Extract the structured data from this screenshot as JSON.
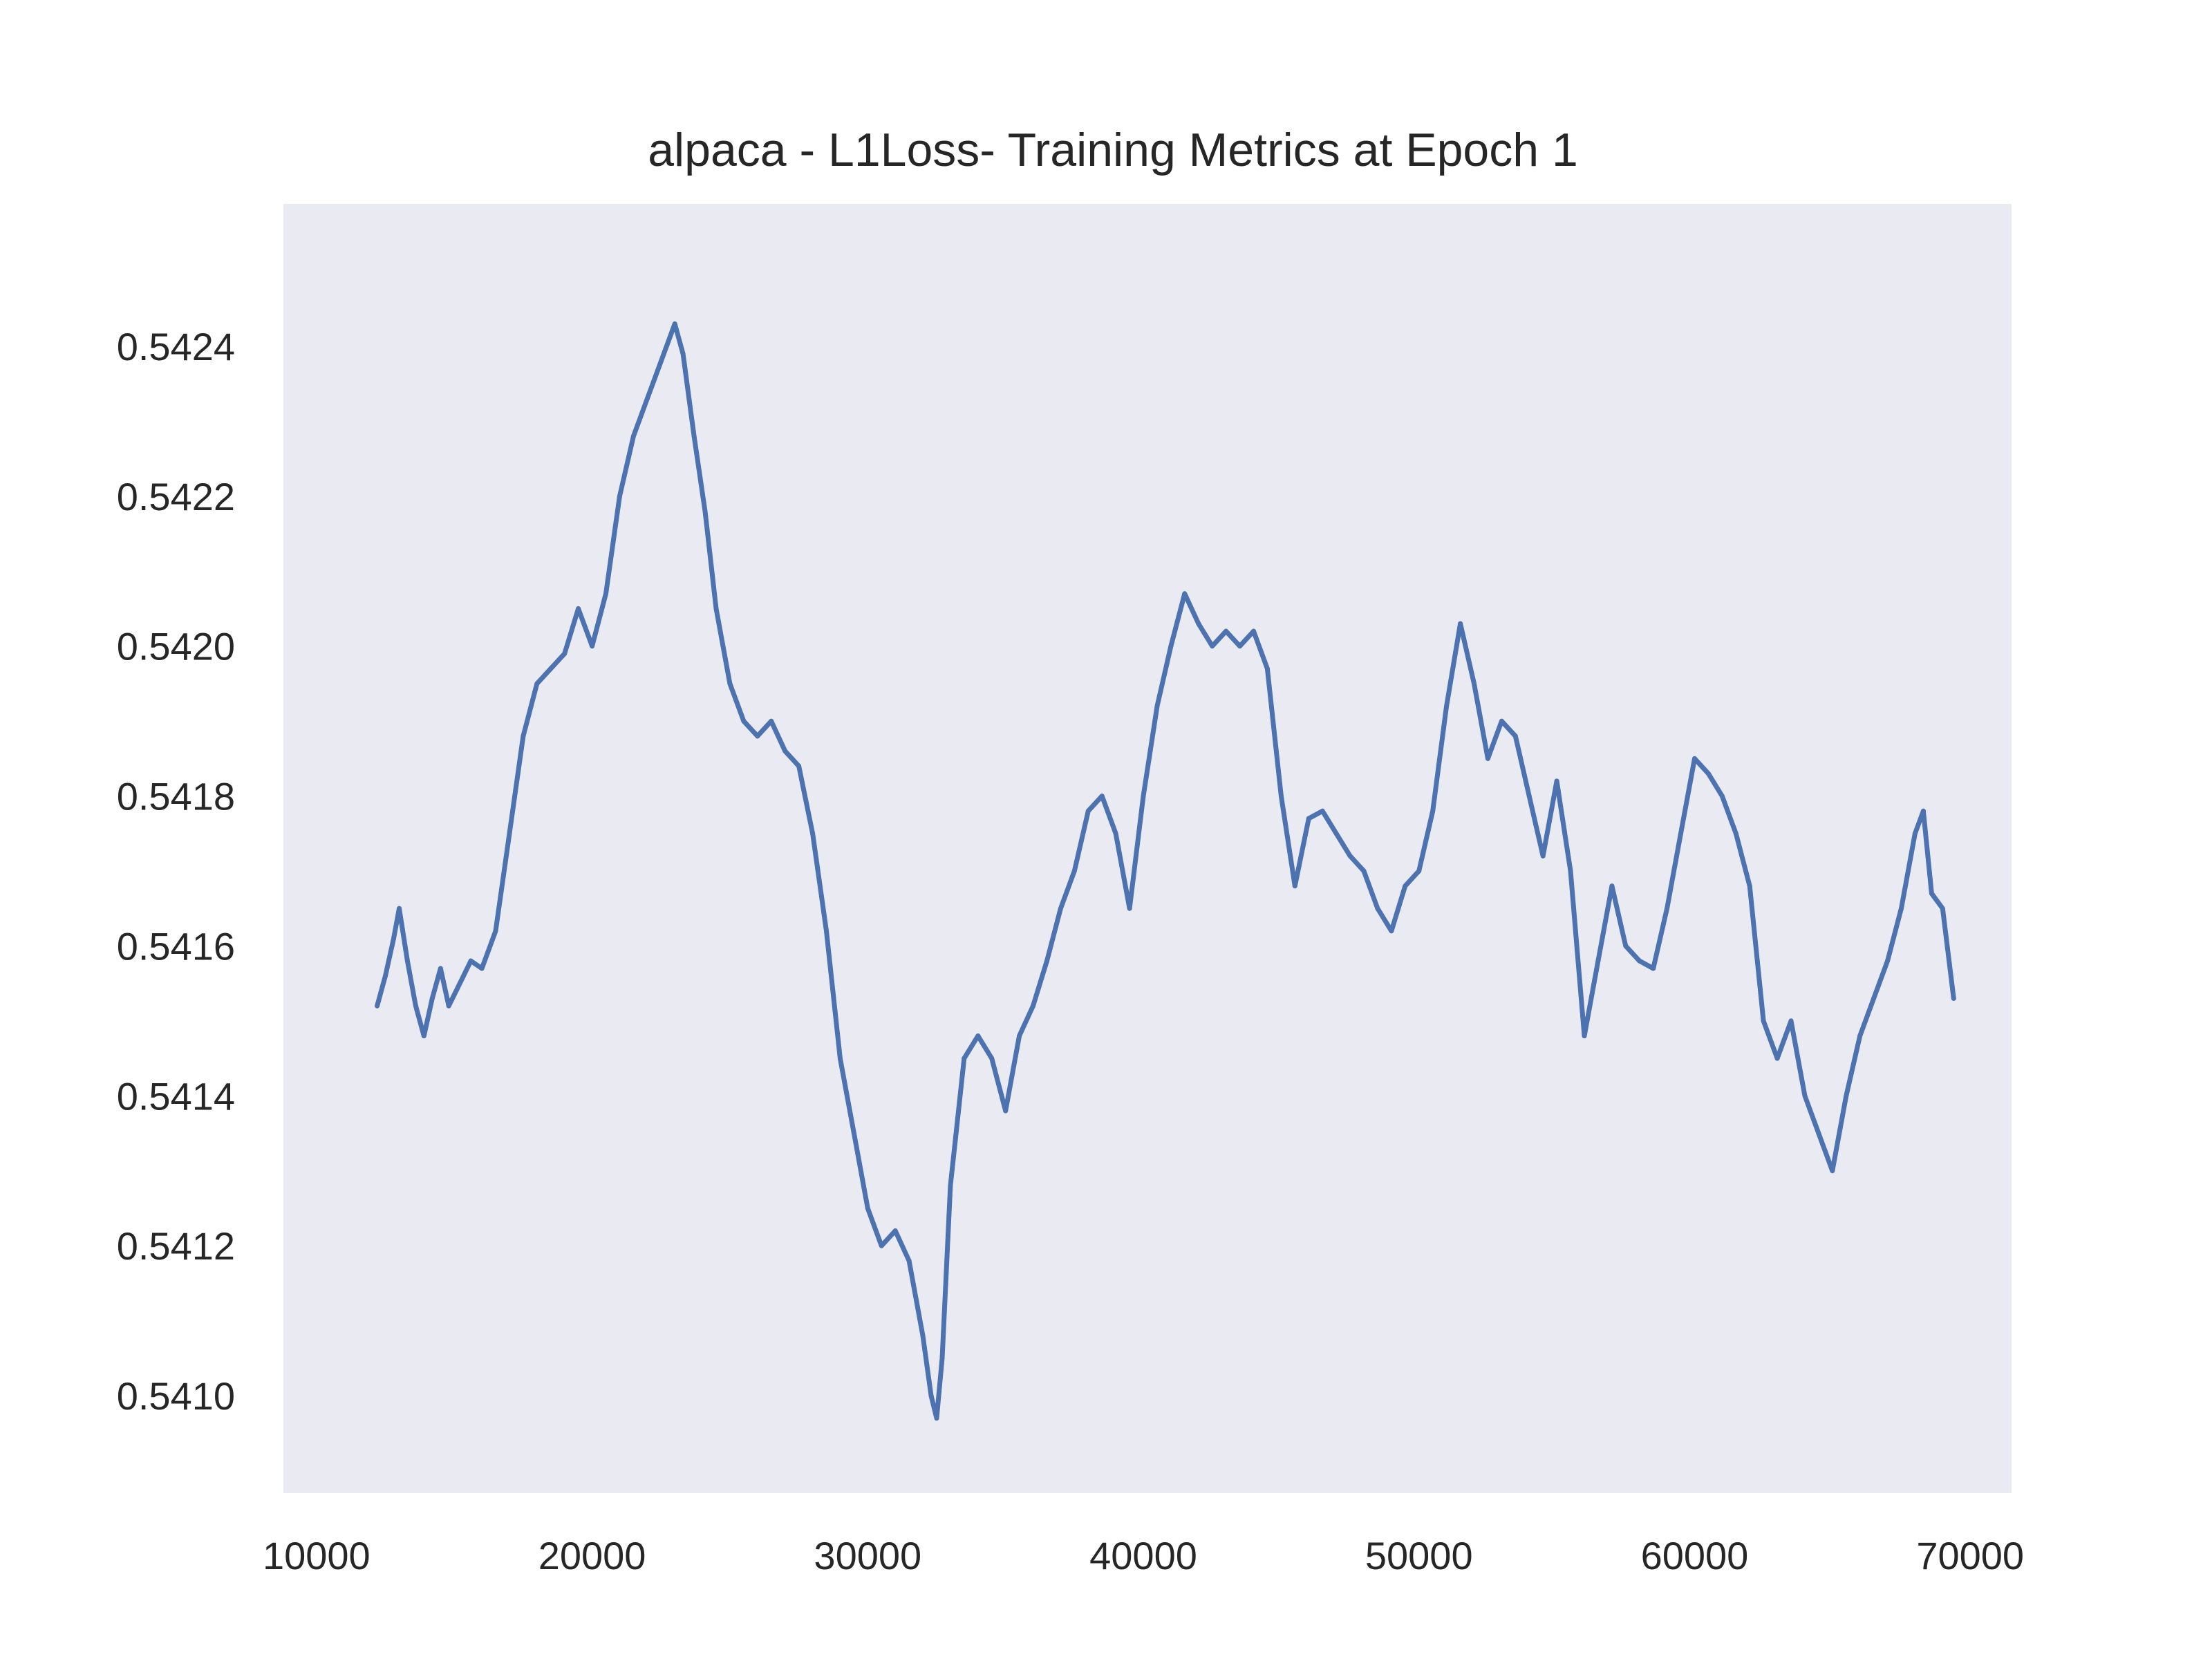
{
  "chart_data": {
    "type": "line",
    "title": "alpaca - L1Loss- Training Metrics at Epoch 1",
    "xlabel": "",
    "ylabel": "",
    "xlim": [
      12200,
      69400
    ],
    "ylim": [
      0.54087,
      0.54259
    ],
    "x_ticks": [
      10000,
      20000,
      30000,
      40000,
      50000,
      60000,
      70000
    ],
    "x_tick_labels": [
      "10000",
      "20000",
      "30000",
      "40000",
      "50000",
      "60000",
      "70000"
    ],
    "y_ticks": [
      0.541,
      0.5412,
      0.5414,
      0.5416,
      0.5418,
      0.542,
      0.5422,
      0.5424
    ],
    "y_tick_labels": [
      "0.5410",
      "0.5412",
      "0.5414",
      "0.5416",
      "0.5418",
      "0.5420",
      "0.5422",
      "0.5424"
    ],
    "grid": false,
    "background": "#eaeaf2",
    "series": [
      {
        "color": "#4c72b0",
        "x": [
          12200,
          12500,
          12800,
          13000,
          13300,
          13600,
          13900,
          14200,
          14500,
          14800,
          15200,
          15600,
          16000,
          16500,
          17000,
          17500,
          18000,
          18500,
          19000,
          19500,
          20000,
          20500,
          21000,
          21500,
          22000,
          22500,
          23000,
          23300,
          23700,
          24100,
          24500,
          25000,
          25500,
          26000,
          26500,
          27000,
          27500,
          28000,
          28500,
          29000,
          29500,
          30000,
          30500,
          31000,
          31500,
          32000,
          32300,
          32500,
          32700,
          33000,
          33500,
          34000,
          34500,
          35000,
          35500,
          36000,
          36500,
          37000,
          37500,
          38000,
          38500,
          39000,
          39500,
          40000,
          40500,
          41000,
          41500,
          42000,
          42500,
          43000,
          43500,
          44000,
          44500,
          45000,
          45500,
          46000,
          46500,
          47000,
          47500,
          48000,
          48500,
          49000,
          49500,
          50000,
          50500,
          51000,
          51500,
          52000,
          52500,
          53000,
          53500,
          54000,
          54500,
          55000,
          55500,
          56000,
          56500,
          57000,
          57500,
          58000,
          58500,
          59000,
          59500,
          60000,
          60500,
          61000,
          61500,
          62000,
          62500,
          63000,
          63500,
          64000,
          64500,
          65000,
          65500,
          66000,
          66500,
          67000,
          67500,
          68000,
          68300,
          68600,
          69000,
          69400
        ],
        "y": [
          0.54152,
          0.54156,
          0.54161,
          0.54165,
          0.54158,
          0.54152,
          0.54148,
          0.54153,
          0.54157,
          0.54152,
          0.54155,
          0.54158,
          0.54157,
          0.54162,
          0.54175,
          0.54188,
          0.54195,
          0.54197,
          0.54199,
          0.54205,
          0.542,
          0.54207,
          0.5422,
          0.54228,
          0.54233,
          0.54238,
          0.54243,
          0.54239,
          0.54228,
          0.54218,
          0.54205,
          0.54195,
          0.5419,
          0.54188,
          0.5419,
          0.54186,
          0.54184,
          0.54175,
          0.54162,
          0.54145,
          0.54135,
          0.54125,
          0.5412,
          0.54122,
          0.54118,
          0.54108,
          0.541,
          0.54097,
          0.54105,
          0.54128,
          0.54145,
          0.54148,
          0.54145,
          0.54138,
          0.54148,
          0.54152,
          0.54158,
          0.54165,
          0.5417,
          0.54178,
          0.5418,
          0.54175,
          0.54165,
          0.5418,
          0.54192,
          0.542,
          0.54207,
          0.54203,
          0.542,
          0.54202,
          0.542,
          0.54202,
          0.54197,
          0.5418,
          0.54168,
          0.54177,
          0.54178,
          0.54175,
          0.54172,
          0.5417,
          0.54165,
          0.54162,
          0.54168,
          0.5417,
          0.54178,
          0.54192,
          0.54203,
          0.54195,
          0.54185,
          0.5419,
          0.54188,
          0.5418,
          0.54172,
          0.54182,
          0.5417,
          0.54148,
          0.54158,
          0.54168,
          0.5416,
          0.54158,
          0.54157,
          0.54165,
          0.54175,
          0.54185,
          0.54183,
          0.5418,
          0.54175,
          0.54168,
          0.5415,
          0.54145,
          0.5415,
          0.5414,
          0.54135,
          0.5413,
          0.5414,
          0.54148,
          0.54153,
          0.54158,
          0.54165,
          0.54175,
          0.54178,
          0.54167,
          0.54165,
          0.54153
        ]
      }
    ]
  }
}
